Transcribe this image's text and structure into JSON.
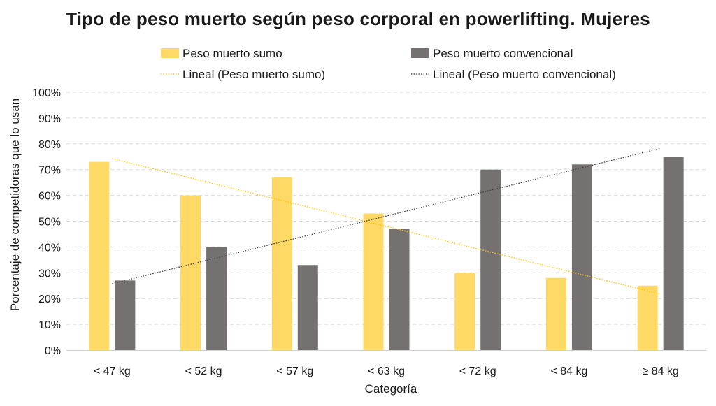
{
  "chart_data": {
    "type": "bar",
    "title": "Tipo de peso muerto según peso corporal en powerlifting. Mujeres",
    "xlabel": "Categoría",
    "ylabel": "Porcentaje de competidoras que lo usan",
    "categories": [
      "< 47 kg",
      "< 52 kg",
      "< 57 kg",
      "< 63 kg",
      "< 72 kg",
      "< 84 kg",
      "≥ 84 kg"
    ],
    "ylim": [
      0,
      100
    ],
    "yticks": [
      "0%",
      "10%",
      "20%",
      "30%",
      "40%",
      "50%",
      "60%",
      "70%",
      "80%",
      "90%",
      "100%"
    ],
    "grid": true,
    "legend_position": "top",
    "series": [
      {
        "name": "Peso muerto sumo",
        "color": "#FFD966",
        "values": [
          73,
          60,
          67,
          53,
          30,
          28,
          25
        ]
      },
      {
        "name": "Peso muerto convencional",
        "color": "#767171",
        "values": [
          27,
          40,
          33,
          47,
          70,
          72,
          75
        ]
      }
    ],
    "trendlines": [
      {
        "name": "Lineal (Peso muerto sumo)",
        "series": 0,
        "color": "#FFC000",
        "style": "dotted"
      },
      {
        "name": "Lineal (Peso muerto convencional)",
        "series": 1,
        "color": "#404040",
        "style": "dotted"
      }
    ]
  }
}
